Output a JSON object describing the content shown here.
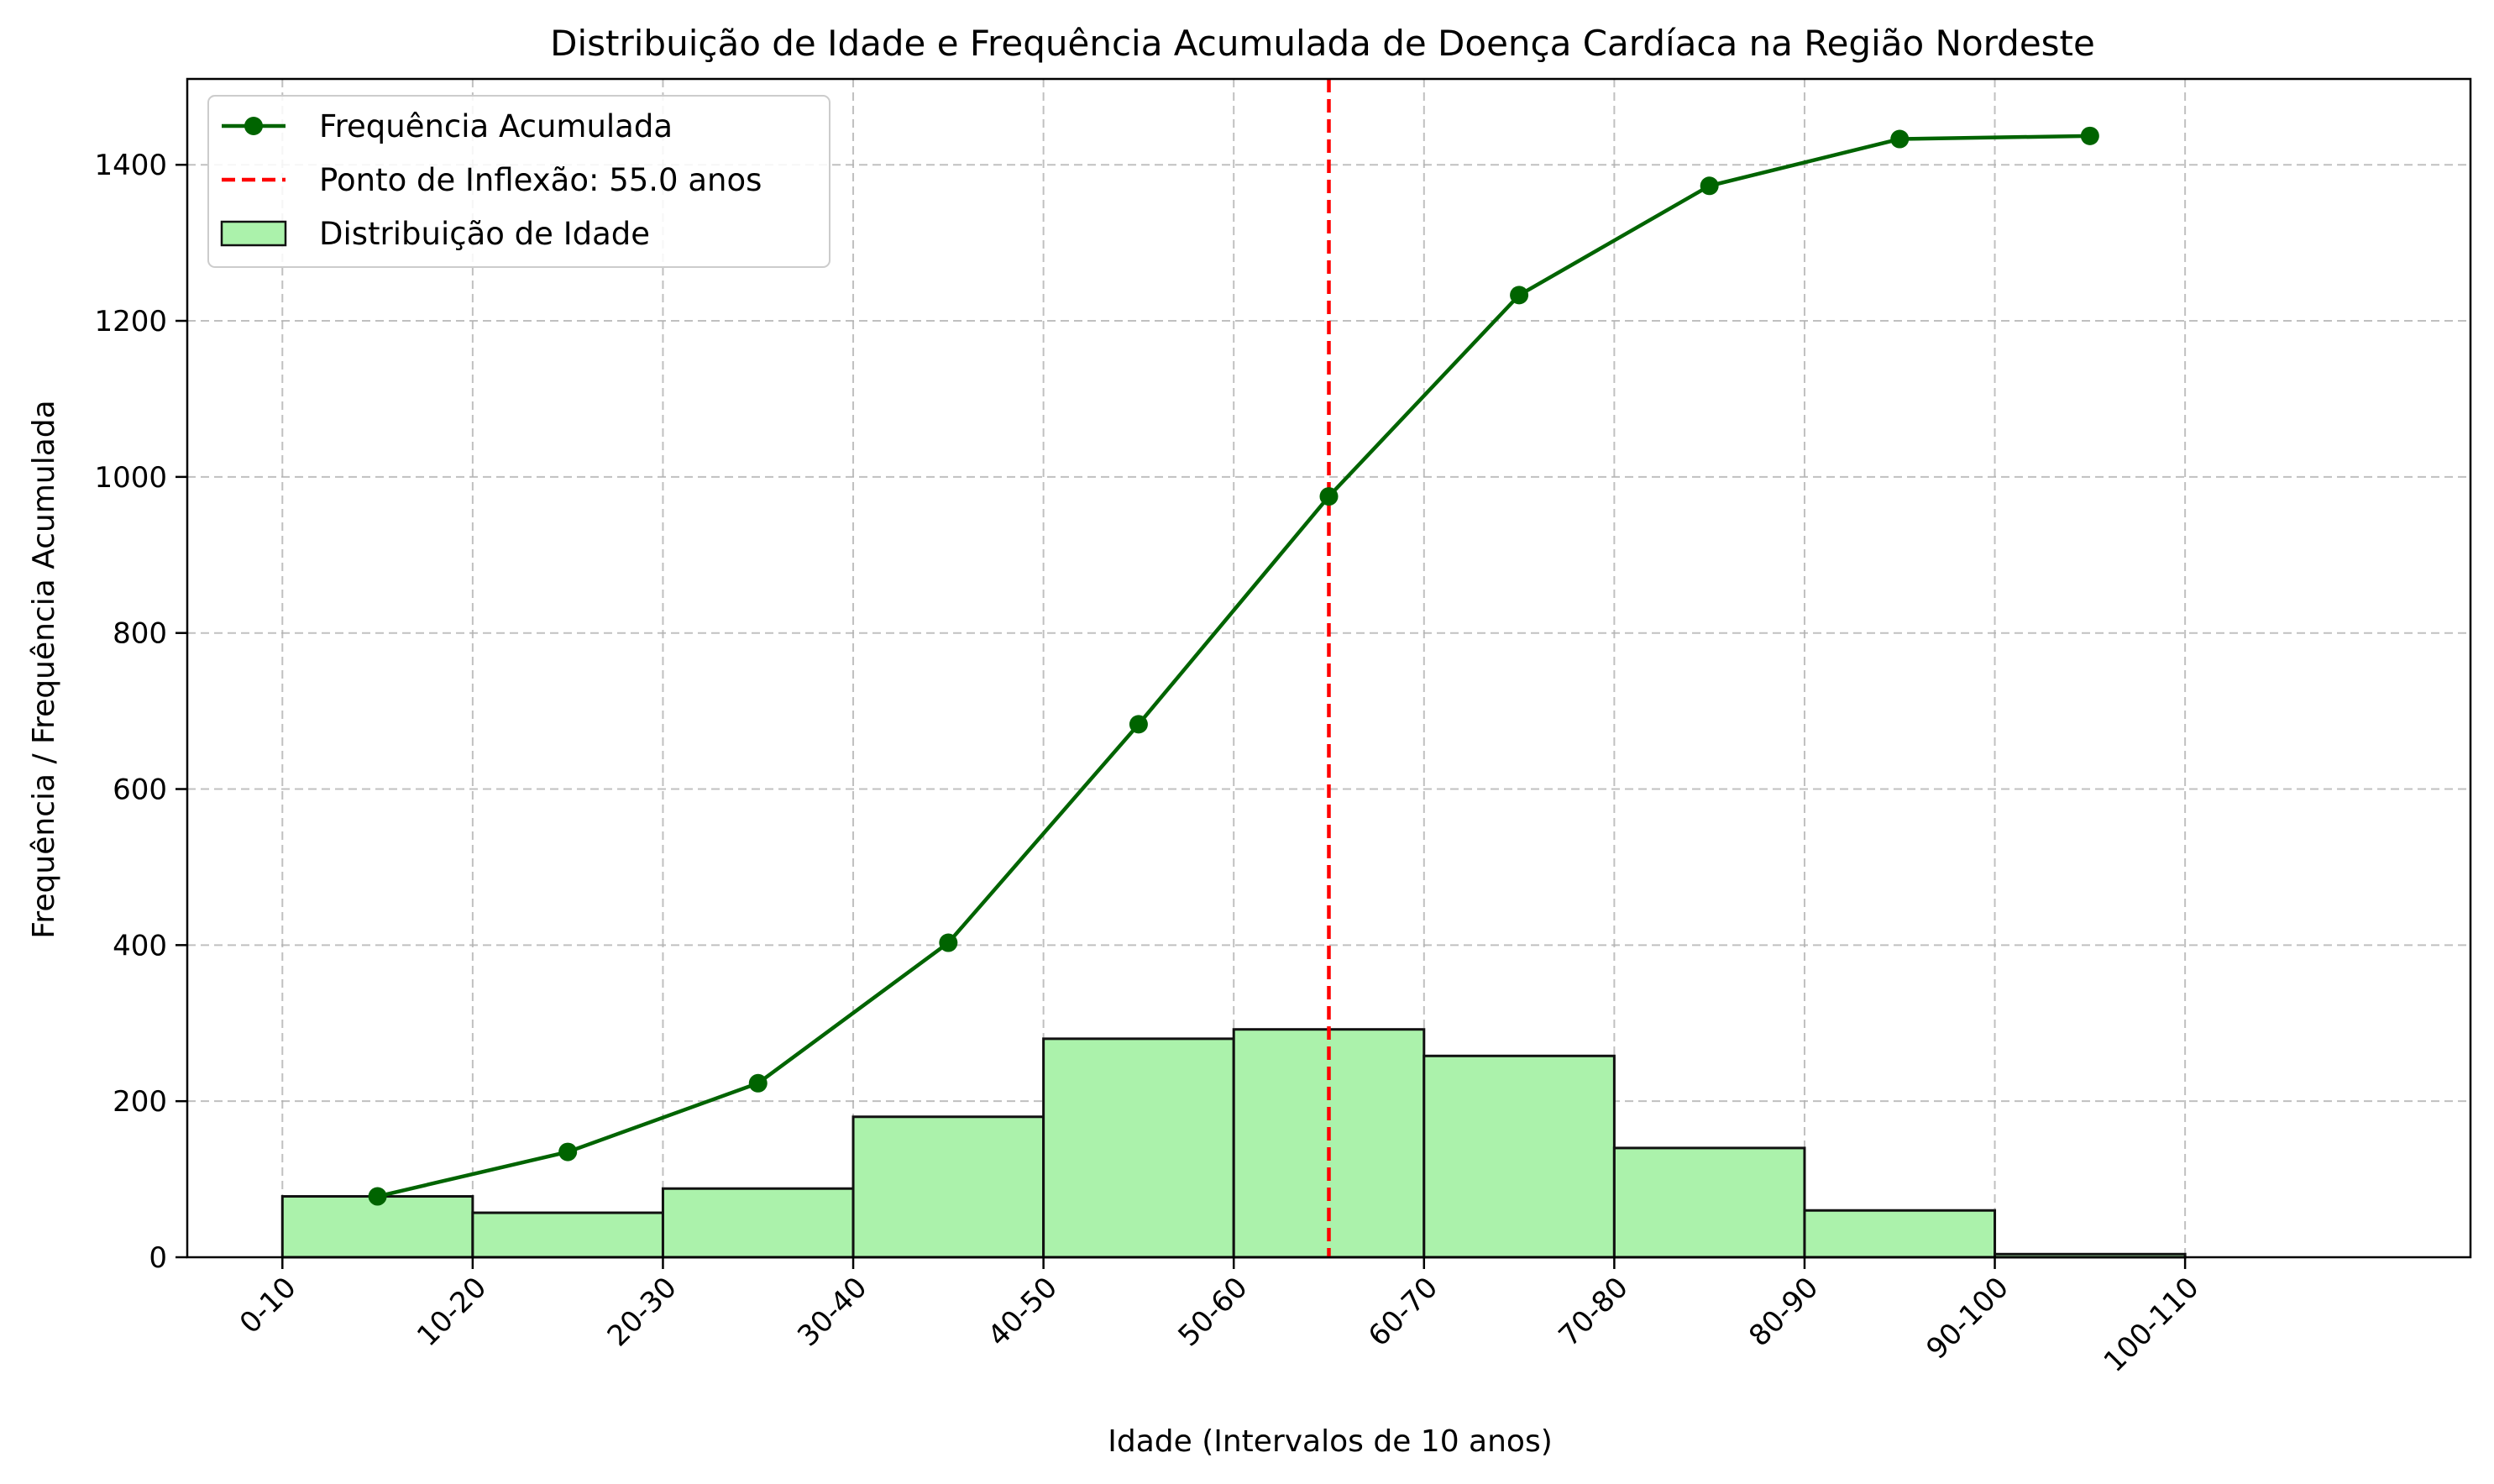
{
  "chart_data": {
    "type": "bar",
    "title": "Distribuição de Idade e Frequência Acumulada de Doença Cardíaca na Região Nordeste",
    "xlabel": "Idade (Intervalos de 10 anos)",
    "ylabel": "Frequência / Frequência Acumulada",
    "x_range": [
      -5,
      115
    ],
    "ylim": [
      0,
      1510
    ],
    "y_ticks": [
      0,
      200,
      400,
      600,
      800,
      1000,
      1200,
      1400
    ],
    "x_tick_positions": [
      0,
      10,
      20,
      30,
      40,
      50,
      60,
      70,
      80,
      90,
      100
    ],
    "x_tick_labels": [
      "0-10",
      "10-20",
      "20-30",
      "30-40",
      "40-50",
      "50-60",
      "60-70",
      "70-80",
      "80-90",
      "90-100",
      "100-110"
    ],
    "grid": true,
    "legend_position": "top-left",
    "histogram": {
      "name": "Distribuição de Idade",
      "bin_edges": [
        0,
        10,
        20,
        30,
        40,
        50,
        60,
        70,
        80,
        90,
        100
      ],
      "values": [
        78,
        57,
        88,
        180,
        280,
        292,
        258,
        140,
        60,
        4
      ],
      "fill": "#abf2ab",
      "edge": "#111111"
    },
    "cumulative": {
      "name": "Frequência Acumulada",
      "x": [
        5,
        15,
        25,
        35,
        45,
        55,
        65,
        75,
        85,
        95
      ],
      "values": [
        78,
        135,
        223,
        403,
        683,
        975,
        1233,
        1373,
        1433,
        1437
      ],
      "color": "#006400"
    },
    "inflection": {
      "name": "Ponto de Inflexão: 55.0 anos",
      "x": 55,
      "color": "#ff0000"
    }
  }
}
